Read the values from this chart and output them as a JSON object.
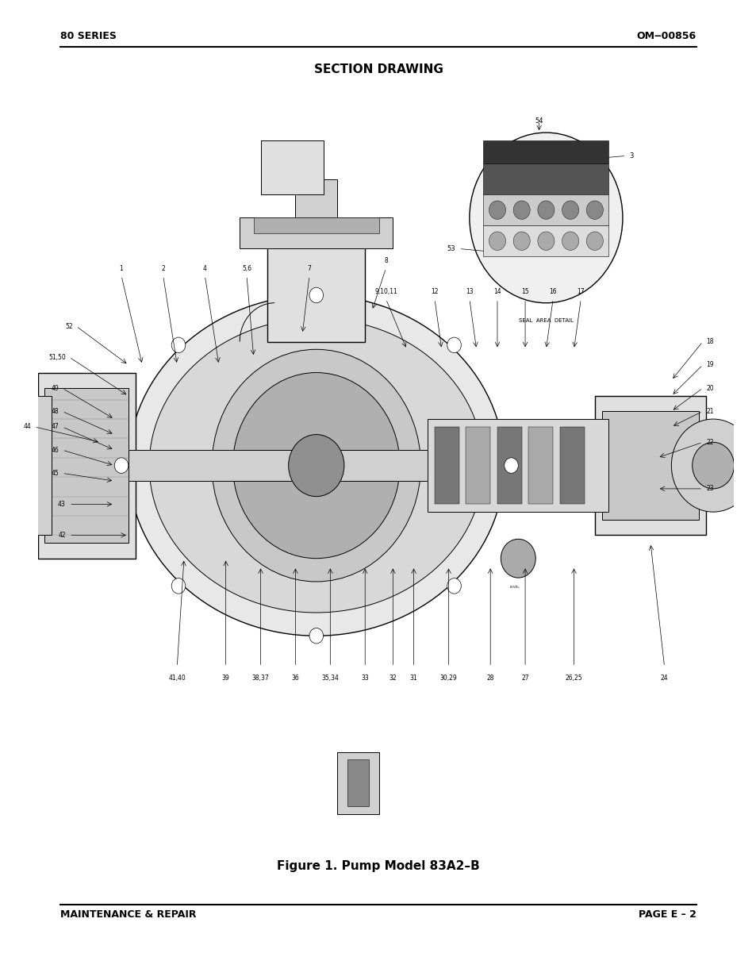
{
  "bg_color": "#ffffff",
  "header_left": "80 SERIES",
  "header_right": "OM‒00856",
  "section_title": "SECTION DRAWING",
  "figure_caption": "Figure 1. Pump Model 83A2–B",
  "footer_left": "MAINTENANCE & REPAIR",
  "footer_right": "PAGE E – 2",
  "page_width": 9.54,
  "page_height": 12.35
}
